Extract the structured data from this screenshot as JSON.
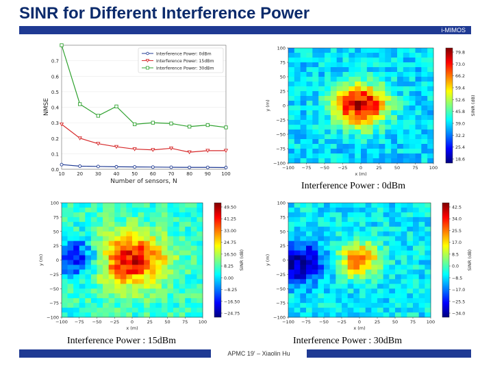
{
  "slide": {
    "title": "SINR for Different Interference Power",
    "header_tag": "i-MIMOS",
    "footer": "APMC 19' – Xiaolin Hu"
  },
  "colors": {
    "bar": "#1f3a93",
    "title": "#0b2a6b",
    "s0": "#1f3a93",
    "s15": "#d62728",
    "s30": "#2ca02c"
  },
  "chart_data": [
    {
      "type": "line",
      "xlabel": "Number of sensors, N",
      "ylabel": "NMSE",
      "xlim": [
        10,
        100
      ],
      "ylim": [
        0,
        0.8
      ],
      "xticks": [
        10,
        20,
        30,
        40,
        50,
        60,
        70,
        80,
        90,
        100
      ],
      "yticks": [
        0.0,
        0.1,
        0.2,
        0.3,
        0.4,
        0.5,
        0.6,
        0.7
      ],
      "ytick_labels": [
        "0.0",
        "0.1",
        "0.2",
        "0.3",
        "0.4",
        "0.5",
        "0.6",
        "0.7"
      ],
      "x": [
        10,
        20,
        30,
        40,
        50,
        60,
        70,
        80,
        90,
        100
      ],
      "legend": "top-right",
      "series": [
        {
          "name": "Interference Power: 0dBm",
          "color": "#1f3a93",
          "marker": "circle",
          "values": [
            0.03,
            0.02,
            0.018,
            0.016,
            0.015,
            0.014,
            0.013,
            0.012,
            0.012,
            0.011
          ]
        },
        {
          "name": "Interference Power: 15dBm",
          "color": "#d62728",
          "marker": "triangle",
          "values": [
            0.29,
            0.2,
            0.165,
            0.145,
            0.13,
            0.125,
            0.135,
            0.11,
            0.12,
            0.12
          ]
        },
        {
          "name": "Interference Power: 30dBm",
          "color": "#2ca02c",
          "marker": "square",
          "values": [
            0.8,
            0.42,
            0.345,
            0.405,
            0.29,
            0.3,
            0.295,
            0.275,
            0.285,
            0.27
          ]
        }
      ]
    },
    {
      "type": "heatmap",
      "caption": "Interference Power : 0dBm",
      "xlabel": "x (m)",
      "ylabel": "y (m)",
      "colorbar_label": "SINR (dB)",
      "xlim": [
        -100,
        100
      ],
      "ylim": [
        -100,
        100
      ],
      "xtick_labels": [
        "−100",
        "−75",
        "−50",
        "−25",
        "0",
        "25",
        "50",
        "75",
        "100"
      ],
      "ytick_labels": [
        "100",
        "75",
        "50",
        "25",
        "0",
        "−25",
        "−50",
        "−75",
        "−100"
      ],
      "colorbar_ticks": [
        "79.8",
        "73.0",
        "66.2",
        "59.4",
        "52.6",
        "45.8",
        "39.0",
        "32.2",
        "25.4",
        "18.6"
      ],
      "crange": [
        18.6,
        83
      ],
      "base": 0.34,
      "hotspots": [
        {
          "x": 0,
          "y": 0,
          "amp": 0.62,
          "sigma": 25
        }
      ]
    },
    {
      "type": "heatmap",
      "caption": "Interference Power : 15dBm",
      "xlabel": "x (m)",
      "ylabel": "y (m)",
      "colorbar_label": "SINR (dB)",
      "xlim": [
        -100,
        100
      ],
      "ylim": [
        -100,
        100
      ],
      "xtick_labels": [
        "−100",
        "−75",
        "−50",
        "−25",
        "0",
        "25",
        "50",
        "75",
        "100"
      ],
      "ytick_labels": [
        "100",
        "75",
        "50",
        "25",
        "0",
        "−25",
        "−50",
        "−75",
        "−100"
      ],
      "colorbar_ticks": [
        "49.50",
        "41.25",
        "33.00",
        "24.75",
        "16.50",
        "8.25",
        "0.00",
        "−8.25",
        "−16.50",
        "−24.75"
      ],
      "crange": [
        -30,
        53
      ],
      "base": 0.42,
      "hotspots": [
        {
          "x": 0,
          "y": 0,
          "amp": 0.5,
          "sigma": 32
        },
        {
          "x": -80,
          "y": 5,
          "amp": -0.34,
          "sigma": 22
        }
      ]
    },
    {
      "type": "heatmap",
      "caption": "Interference Power : 30dBm",
      "xlabel": "x (m)",
      "ylabel": "y (m)",
      "colorbar_label": "SINR (dB)",
      "xlim": [
        -100,
        100
      ],
      "ylim": [
        -100,
        100
      ],
      "xtick_labels": [
        "−100",
        "−75",
        "−50",
        "−25",
        "0",
        "25",
        "50",
        "75",
        "100"
      ],
      "ytick_labels": [
        "100",
        "75",
        "50",
        "25",
        "0",
        "−25",
        "−50",
        "−75",
        "−100"
      ],
      "colorbar_ticks": [
        "42.5",
        "34.0",
        "25.5",
        "17.0",
        "8.5",
        "0.0",
        "−8.5",
        "−17.0",
        "−25.5",
        "−34.0"
      ],
      "crange": [
        -38,
        46
      ],
      "base": 0.36,
      "hotspots": [
        {
          "x": 0,
          "y": 0,
          "amp": 0.45,
          "sigma": 20
        },
        {
          "x": -82,
          "y": -5,
          "amp": -0.34,
          "sigma": 24
        }
      ]
    }
  ]
}
